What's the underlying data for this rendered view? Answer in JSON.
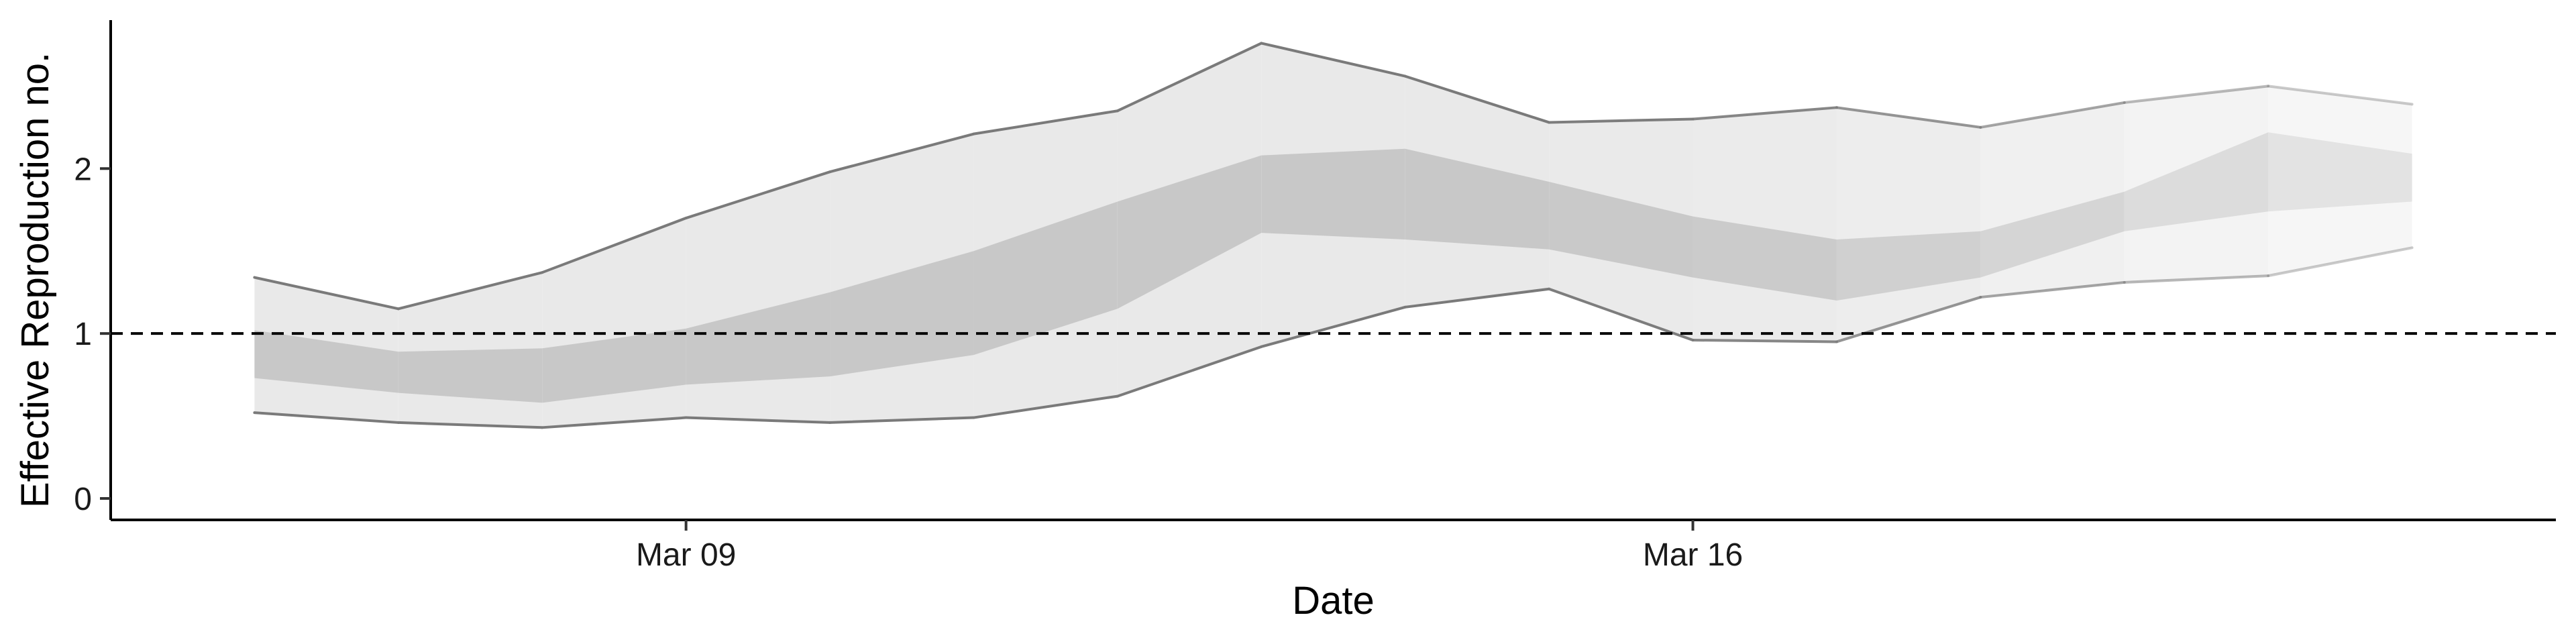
{
  "chart_data": {
    "type": "area",
    "xlabel": "Date",
    "ylabel": "Effective Reproduction no.",
    "x_tick_labels": [
      {
        "date": "2020-03-09",
        "label": "Mar 09"
      },
      {
        "date": "2020-03-16",
        "label": "Mar 16"
      }
    ],
    "y_ticks": [
      0,
      1,
      2
    ],
    "ylim": [
      -0.13,
      2.9
    ],
    "xlim": [
      "2020-03-05",
      "2020-03-22"
    ],
    "reference_line": {
      "y": 1,
      "style": "dashed",
      "color": "#000000"
    },
    "grid": false,
    "colors": {
      "outer_band": "#e9e9e9",
      "inner_band": "#c8c8c8",
      "outer_line": "#7a7a7a",
      "axis": "#000000"
    },
    "dates": [
      "2020-03-06",
      "2020-03-07",
      "2020-03-08",
      "2020-03-09",
      "2020-03-10",
      "2020-03-11",
      "2020-03-12",
      "2020-03-13",
      "2020-03-14",
      "2020-03-15",
      "2020-03-16",
      "2020-03-17",
      "2020-03-18",
      "2020-03-19",
      "2020-03-20",
      "2020-03-21"
    ],
    "outer_lower": [
      0.52,
      0.46,
      0.43,
      0.49,
      0.46,
      0.49,
      0.62,
      0.92,
      1.16,
      1.27,
      0.96,
      0.95,
      1.22,
      1.31,
      1.35,
      1.52
    ],
    "outer_upper": [
      1.34,
      1.15,
      1.37,
      1.7,
      1.98,
      2.21,
      2.35,
      2.76,
      2.56,
      2.28,
      2.3,
      2.37,
      2.25,
      2.4,
      2.5,
      2.39
    ],
    "inner_lower": [
      0.73,
      0.64,
      0.58,
      0.69,
      0.74,
      0.87,
      1.15,
      1.61,
      1.57,
      1.51,
      1.34,
      1.2,
      1.34,
      1.62,
      1.74,
      1.8
    ],
    "inner_upper": [
      1.02,
      0.89,
      0.91,
      1.03,
      1.25,
      1.5,
      1.8,
      2.08,
      2.12,
      1.92,
      1.71,
      1.57,
      1.62,
      1.86,
      2.22,
      2.09
    ],
    "band_opacity": [
      1,
      1,
      1,
      1,
      1,
      1,
      1,
      1,
      1,
      1,
      0.95,
      0.85,
      0.75,
      0.6,
      0.45,
      0.35
    ]
  }
}
